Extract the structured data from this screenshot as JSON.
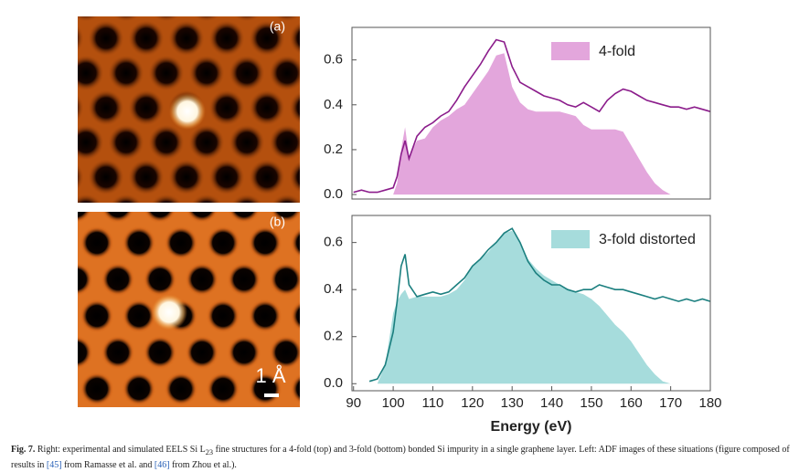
{
  "chart_data": [
    {
      "type": "line",
      "x": [
        90,
        92,
        94,
        96,
        98,
        100,
        101,
        102,
        103,
        104,
        106,
        108,
        110,
        112,
        114,
        116,
        118,
        120,
        122,
        124,
        126,
        128,
        130,
        132,
        134,
        136,
        138,
        140,
        142,
        144,
        146,
        148,
        150,
        152,
        154,
        156,
        158,
        160,
        162,
        164,
        166,
        168,
        170,
        172,
        174,
        176,
        178,
        180
      ],
      "xlim": [
        89.6,
        180
      ],
      "ylim": [
        -0.02,
        0.745
      ],
      "yticks": [
        {
          "value": 0,
          "label": "0.0"
        },
        0.2,
        0.4,
        0.6
      ],
      "legend": "upper right",
      "series": [
        {
          "name": "4-fold",
          "color": "#e3a6dc",
          "fill": true,
          "values": [
            0,
            0,
            0,
            0,
            0,
            0,
            0.05,
            0.2,
            0.3,
            0.17,
            0.24,
            0.25,
            0.3,
            0.33,
            0.35,
            0.38,
            0.4,
            0.45,
            0.5,
            0.55,
            0.62,
            0.63,
            0.48,
            0.41,
            0.38,
            0.37,
            0.37,
            0.37,
            0.37,
            0.36,
            0.35,
            0.31,
            0.29,
            0.29,
            0.29,
            0.29,
            0.28,
            0.22,
            0.16,
            0.1,
            0.05,
            0.02,
            0,
            0,
            0,
            0,
            0,
            0
          ]
        },
        {
          "color": "#8b1c8b",
          "fill": false,
          "values": [
            0.01,
            0.02,
            0.01,
            0.01,
            0.02,
            0.03,
            0.08,
            0.18,
            0.24,
            0.16,
            0.26,
            0.3,
            0.32,
            0.35,
            0.37,
            0.42,
            0.48,
            0.53,
            0.58,
            0.64,
            0.69,
            0.68,
            0.57,
            0.5,
            0.48,
            0.46,
            0.44,
            0.43,
            0.42,
            0.4,
            0.39,
            0.41,
            0.39,
            0.37,
            0.42,
            0.45,
            0.47,
            0.46,
            0.44,
            0.42,
            0.41,
            0.4,
            0.39,
            0.39,
            0.38,
            0.39,
            0.38,
            0.37
          ]
        }
      ]
    },
    {
      "type": "line",
      "x": [
        90,
        92,
        94,
        96,
        98,
        100,
        101,
        102,
        103,
        104,
        106,
        108,
        110,
        112,
        114,
        116,
        118,
        120,
        122,
        124,
        126,
        128,
        130,
        132,
        134,
        136,
        138,
        140,
        142,
        144,
        146,
        148,
        150,
        152,
        154,
        156,
        158,
        160,
        162,
        164,
        166,
        168,
        170,
        172,
        174,
        176,
        178,
        180
      ],
      "xlim": [
        89.6,
        180
      ],
      "ylim": [
        -0.03,
        0.715
      ],
      "xticks": [
        90,
        100,
        110,
        120,
        130,
        140,
        150,
        160,
        170,
        180
      ],
      "yticks": [
        {
          "value": 0,
          "label": "0.0"
        },
        0.2,
        0.4,
        0.6
      ],
      "xlabel": "Energy (eV)",
      "legend": "upper right",
      "series": [
        {
          "name": "3-fold distorted",
          "color": "#a6dcdc",
          "fill": true,
          "values": [
            null,
            null,
            null,
            0,
            0.08,
            0.3,
            0.35,
            0.38,
            0.4,
            0.36,
            0.37,
            0.37,
            0.37,
            0.37,
            0.38,
            0.4,
            0.44,
            0.5,
            0.53,
            0.56,
            0.6,
            0.64,
            0.65,
            0.6,
            0.53,
            0.49,
            0.46,
            0.44,
            0.42,
            0.4,
            0.39,
            0.38,
            0.36,
            0.33,
            0.29,
            0.25,
            0.22,
            0.18,
            0.13,
            0.08,
            0.04,
            0.01,
            0,
            null,
            null,
            null,
            null,
            null
          ]
        },
        {
          "color": "#1b7f7f",
          "fill": false,
          "values": [
            null,
            null,
            0.01,
            0.02,
            0.08,
            0.22,
            0.35,
            0.5,
            0.55,
            0.42,
            0.37,
            0.38,
            0.39,
            0.38,
            0.39,
            0.42,
            0.45,
            0.5,
            0.53,
            0.57,
            0.6,
            0.64,
            0.66,
            0.6,
            0.52,
            0.47,
            0.44,
            0.42,
            0.42,
            0.4,
            0.39,
            0.4,
            0.4,
            0.42,
            0.41,
            0.4,
            0.4,
            0.39,
            0.38,
            0.37,
            0.36,
            0.37,
            0.36,
            0.35,
            0.36,
            0.35,
            0.36,
            0.35
          ]
        }
      ]
    }
  ],
  "images": [
    {
      "label": "(a)"
    },
    {
      "label": "(b)",
      "scale_bar": "1 Å"
    }
  ],
  "caption": {
    "label": "Fig. 7.",
    "text1": " Right: experimental and simulated EELS Si L",
    "sub": "23",
    "text2": " fine structures for a 4-fold (top) and 3-fold (bottom) bonded Si impurity in a single graphene layer. Left: ADF images of these situations (figure composed of results in ",
    "ref1": "[45]",
    "text3": " from Ramasse et al. and ",
    "ref2": "[46]",
    "text4": " from Zhou et al.)."
  }
}
